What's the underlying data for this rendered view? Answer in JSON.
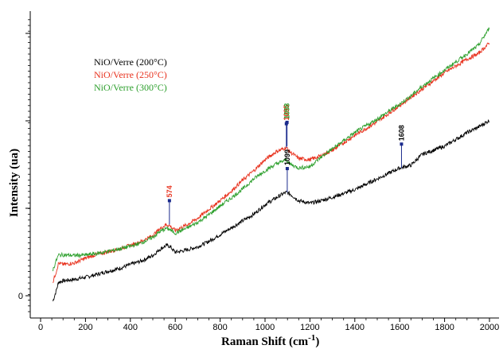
{
  "chart_data": {
    "type": "line",
    "xlabel": "Raman Shift (cm",
    "xlabel_sup": "-1",
    "xlabel_close": ")",
    "ylabel": "Intensity (ua)",
    "xlim": [
      0,
      2000
    ],
    "ylim": [
      -40,
      1000
    ],
    "x_ticks": [
      0,
      200,
      400,
      600,
      800,
      1000,
      1200,
      1400,
      1600,
      1800,
      2000
    ],
    "y_ticks": [
      0
    ],
    "grid": false,
    "legend_position": "top-left",
    "series": [
      {
        "name": "NiO/Verre (200°C)",
        "color": "#000000",
        "x": [
          55,
          70,
          80,
          100,
          150,
          200,
          250,
          300,
          350,
          400,
          450,
          500,
          530,
          560,
          575,
          600,
          650,
          700,
          750,
          800,
          850,
          900,
          950,
          1000,
          1050,
          1080,
          1095,
          1110,
          1150,
          1200,
          1250,
          1300,
          1400,
          1500,
          1600,
          1650,
          1700,
          1800,
          1900,
          1950,
          2000
        ],
        "y": [
          -20,
          20,
          50,
          55,
          60,
          68,
          78,
          90,
          100,
          115,
          128,
          148,
          170,
          185,
          182,
          160,
          168,
          180,
          200,
          225,
          250,
          275,
          300,
          335,
          360,
          375,
          380,
          375,
          350,
          340,
          350,
          362,
          390,
          430,
          470,
          480,
          520,
          550,
          600,
          620,
          645
        ]
      },
      {
        "name": "NiO/Verre (250°C)",
        "color": "#e8321e",
        "x": [
          55,
          70,
          80,
          100,
          150,
          200,
          250,
          300,
          350,
          400,
          450,
          500,
          530,
          560,
          575,
          600,
          650,
          700,
          750,
          800,
          850,
          900,
          950,
          1000,
          1050,
          1080,
          1095,
          1110,
          1150,
          1200,
          1250,
          1300,
          1400,
          1500,
          1600,
          1650,
          1700,
          1800,
          1900,
          1950,
          2000
        ],
        "y": [
          50,
          90,
          120,
          115,
          120,
          138,
          152,
          162,
          172,
          185,
          200,
          222,
          245,
          262,
          258,
          240,
          260,
          285,
          318,
          350,
          385,
          425,
          460,
          500,
          530,
          540,
          545,
          530,
          505,
          500,
          515,
          535,
          590,
          640,
          700,
          730,
          760,
          820,
          870,
          890,
          930
        ]
      },
      {
        "name": "NiO/Verre (300°C)",
        "color": "#2ea02e",
        "x": [
          55,
          70,
          80,
          100,
          150,
          200,
          250,
          300,
          350,
          400,
          450,
          500,
          530,
          560,
          575,
          600,
          650,
          700,
          750,
          800,
          850,
          900,
          950,
          1000,
          1050,
          1080,
          1095,
          1110,
          1150,
          1200,
          1250,
          1300,
          1400,
          1500,
          1600,
          1650,
          1700,
          1800,
          1900,
          1950,
          2000
        ],
        "y": [
          95,
          130,
          150,
          150,
          148,
          150,
          155,
          163,
          172,
          182,
          195,
          215,
          235,
          248,
          244,
          230,
          248,
          270,
          298,
          330,
          360,
          392,
          430,
          460,
          485,
          495,
          500,
          485,
          470,
          475,
          510,
          540,
          600,
          650,
          705,
          735,
          770,
          830,
          890,
          920,
          985
        ]
      }
    ],
    "peak_labels": [
      {
        "x": 574,
        "y": 262,
        "text": "574",
        "color": "#e8321e"
      },
      {
        "x": 1099,
        "y": 380,
        "text": "1099",
        "color": "#000000"
      },
      {
        "x": 1095,
        "y": 545,
        "text": "1095",
        "color": "#e8321e"
      },
      {
        "x": 1098,
        "y": 550,
        "text": "1098",
        "color": "#2ea02e"
      },
      {
        "x": 1608,
        "y": 470,
        "text": "1608",
        "color": "#000000"
      }
    ]
  }
}
